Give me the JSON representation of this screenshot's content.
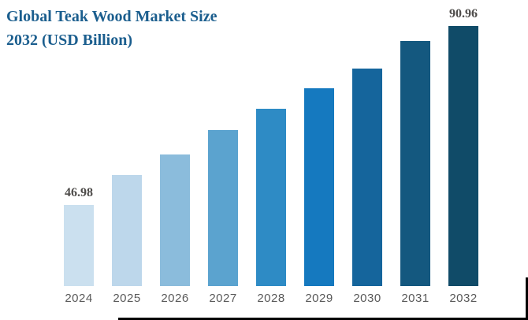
{
  "title": {
    "text": "Global Teak Wood Market Size 2032 (USD Billion)",
    "lines": [
      "Global Teak Wood Market Size",
      "2032 (USD Billion)"
    ]
  },
  "colors": {
    "title_text": "#1b5e8e",
    "value_label_text": "#4e4c4a",
    "axis_label_text": "#5a5a5a",
    "lightest_bar": "#cbe0ef",
    "darkest_bar": "#104b68"
  },
  "chart_data": {
    "type": "bar",
    "title": "Global Teak Wood Market Size 2032 (USD Billion)",
    "categories": [
      "2024",
      "2025",
      "2026",
      "2027",
      "2028",
      "2029",
      "2030",
      "2031",
      "2032"
    ],
    "values": [
      46.98,
      54.3,
      59.3,
      65.3,
      70.7,
      75.7,
      80.4,
      87.2,
      90.96
    ],
    "value_labels": {
      "2024": "46.98",
      "2032": "90.96"
    },
    "bar_colors": [
      "#cbe0ef",
      "#bdd7eb",
      "#8bbcdc",
      "#5ba3cf",
      "#2e8bc5",
      "#1579bf",
      "#15659c",
      "#14587f",
      "#104b68"
    ],
    "xlabel": "",
    "ylabel": "",
    "ylim": [
      27,
      97
    ],
    "grid": false,
    "legend": false
  }
}
